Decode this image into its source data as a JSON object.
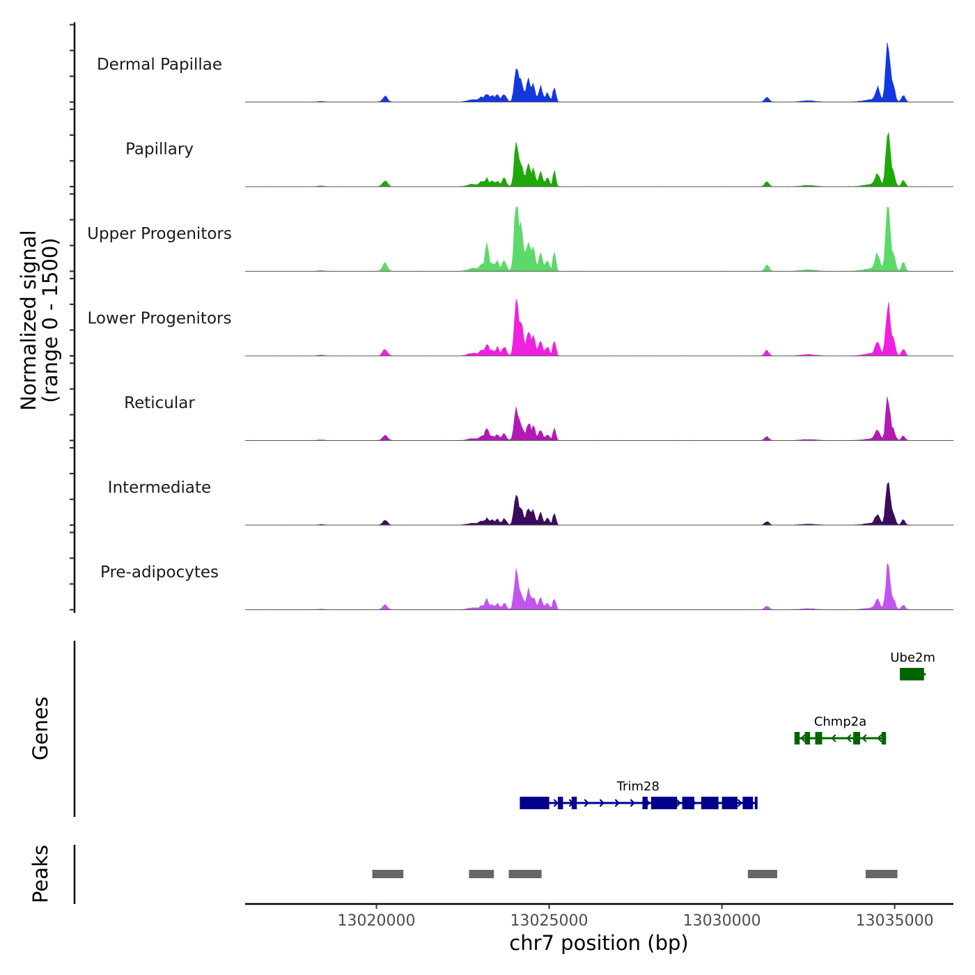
{
  "chart_data": {
    "type": "area",
    "title": "",
    "chromosome": "chr7",
    "xlabel": "chr7 position (bp)",
    "xlim": [
      13016200,
      13036700
    ],
    "x_ticks": [
      13020000,
      13025000,
      13030000,
      13035000
    ],
    "x_tick_labels": [
      "13020000",
      "13025000",
      "13030000",
      "13035000"
    ],
    "signal_ylabel_line1": "Normalized signal",
    "signal_ylabel_line2": "(range 0 - 1500)",
    "ylim": [
      0,
      1500
    ],
    "genes_label": "Genes",
    "peaks_label": "Peaks",
    "base_profile": [
      [
        13018400,
        0.012,
        80
      ],
      [
        13020250,
        0.1,
        70
      ],
      [
        13022800,
        0.04,
        150
      ],
      [
        13023050,
        0.08,
        60
      ],
      [
        13023200,
        0.13,
        50
      ],
      [
        13023350,
        0.1,
        50
      ],
      [
        13023500,
        0.13,
        50
      ],
      [
        13023700,
        0.14,
        60
      ],
      [
        13024050,
        0.55,
        60
      ],
      [
        13024200,
        0.3,
        60
      ],
      [
        13024400,
        0.4,
        55
      ],
      [
        13024550,
        0.28,
        50
      ],
      [
        13024750,
        0.24,
        55
      ],
      [
        13024950,
        0.14,
        55
      ],
      [
        13025150,
        0.25,
        40
      ],
      [
        13031300,
        0.08,
        60
      ],
      [
        13032500,
        0.02,
        200
      ],
      [
        13034400,
        0.04,
        250
      ],
      [
        13034500,
        0.2,
        60
      ],
      [
        13034800,
        1.0,
        55
      ],
      [
        13034950,
        0.25,
        60
      ],
      [
        13035250,
        0.11,
        50
      ]
    ],
    "series": [
      {
        "name": "Dermal Papillae",
        "color": "#1438e0",
        "scale": 1.0,
        "overrides": {
          "13034800": 1.0,
          "13024050": 0.62,
          "13020250": 0.09
        }
      },
      {
        "name": "Papillary",
        "color": "#1fa80a",
        "scale": 0.98,
        "overrides": {
          "13034800": 1.0,
          "13024050": 0.7,
          "13023500": 0.09
        }
      },
      {
        "name": "Upper Progenitors",
        "color": "#5cd968",
        "scale": 1.25,
        "overrides": {
          "13024050": 0.9,
          "13024200": 0.55,
          "13023200": 0.35,
          "13034800": 0.85
        }
      },
      {
        "name": "Lower Progenitors",
        "color": "#f020e0",
        "scale": 1.05,
        "overrides": {
          "13024050": 0.78,
          "13024200": 0.45,
          "13023200": 0.18,
          "13034800": 0.8
        }
      },
      {
        "name": "Reticular",
        "color": "#b21ab4",
        "scale": 0.75,
        "overrides": {
          "13024050": 0.72,
          "13023200": 0.28,
          "13034800": 0.95
        }
      },
      {
        "name": "Intermediate",
        "color": "#3a0c5e",
        "scale": 0.78,
        "overrides": {
          "13024050": 0.7,
          "13034800": 1.0
        }
      },
      {
        "name": "Pre-adipocytes",
        "color": "#c055f0",
        "scale": 0.78,
        "overrides": {
          "13024050": 0.8,
          "13023200": 0.22,
          "13034800": 0.95
        }
      }
    ],
    "genes": [
      {
        "name": "Ube2m",
        "strand": "-",
        "start": 13035150,
        "end": 13035900,
        "row": 0,
        "color": "#006400",
        "exons": [
          [
            13035150,
            13035850
          ]
        ]
      },
      {
        "name": "Chmp2a",
        "strand": "-",
        "start": 13032100,
        "end": 13034750,
        "row": 1,
        "color": "#006400",
        "exons": [
          [
            13032100,
            13032250
          ],
          [
            13032400,
            13032550
          ],
          [
            13032700,
            13032900
          ],
          [
            13033800,
            13034000
          ],
          [
            13034620,
            13034750
          ]
        ]
      },
      {
        "name": "Trim28",
        "strand": "+",
        "start": 13024150,
        "end": 13031000,
        "row": 2,
        "color": "#00008b",
        "exons": [
          [
            13024150,
            13025000
          ],
          [
            13025250,
            13025400
          ],
          [
            13025650,
            13025800
          ],
          [
            13027700,
            13027850
          ],
          [
            13027950,
            13028700
          ],
          [
            13028850,
            13029200
          ],
          [
            13029400,
            13029900
          ],
          [
            13030000,
            13030450
          ],
          [
            13030600,
            13030900
          ],
          [
            13030950,
            13031000
          ]
        ]
      }
    ],
    "peaks": [
      [
        13019880,
        13020780
      ],
      [
        13022680,
        13023400
      ],
      [
        13023830,
        13024780
      ],
      [
        13030750,
        13031600
      ],
      [
        13034160,
        13035080
      ]
    ]
  }
}
